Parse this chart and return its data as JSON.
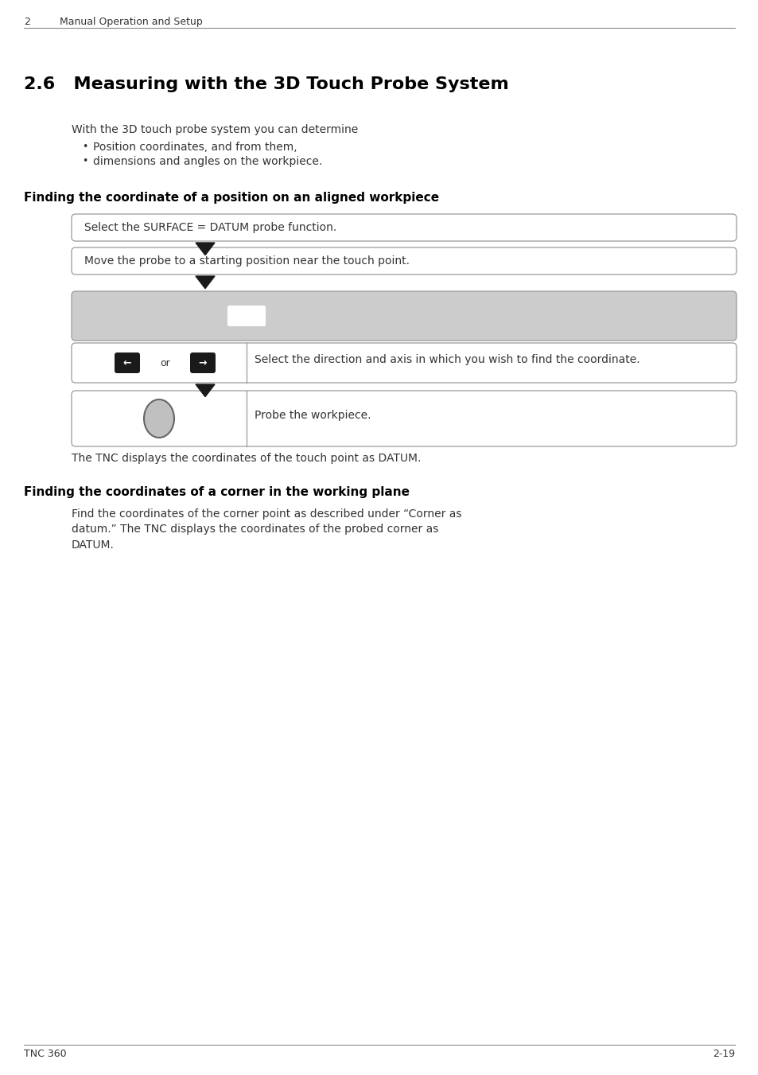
{
  "page_header_num": "2",
  "page_header_text": "Manual Operation and Setup",
  "section_title": "2.6   Measuring with the 3D Touch Probe System",
  "intro_text": "With the 3D touch probe system you can determine",
  "bullet1": "Position coordinates, and from them,",
  "bullet2": "dimensions and angles on the workpiece.",
  "subheading1": "Finding the coordinate of a position on an aligned workpiece",
  "box1_text": "Select the SURFACE = DATUM probe function.",
  "box2_text": "Move the probe to a starting position near the touch point.",
  "box3_direction_text": "Select the direction and axis in which you wish to find the coordinate.",
  "box4_probe_text": "Probe the workpiece.",
  "caption_text": "The TNC displays the coordinates of the touch point as DATUM.",
  "subheading2": "Finding the coordinates of a corner in the working plane",
  "para2": "Find the coordinates of the corner point as described under “Corner as\ndatum.” The TNC displays the coordinates of the probed corner as\nDATUM.",
  "footer_left": "TNC 360",
  "footer_right": "2-19",
  "bg_color": "#ffffff",
  "box_border_color": "#999999",
  "box_bg_white": "#ffffff",
  "box_bg_gray": "#cccccc",
  "arrow_color": "#1a1a1a",
  "button_color": "#1a1a1a",
  "circle_fill": "#c0c0c0",
  "circle_stroke": "#666666",
  "header_line_color": "#888888",
  "footer_line_color": "#888888",
  "text_color": "#333333",
  "heading_color": "#000000"
}
